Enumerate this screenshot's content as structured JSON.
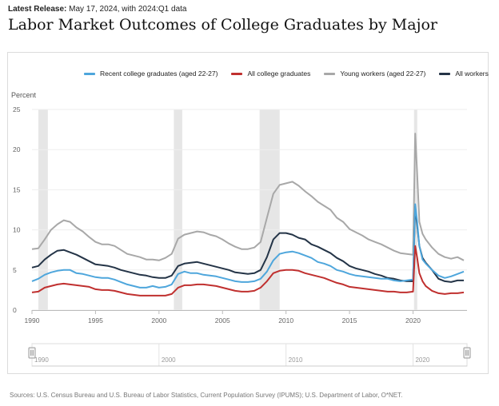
{
  "header": {
    "release_label": "Latest Release:",
    "release_text": "May 17, 2024, with 2024:Q1 data",
    "title": "Labor Market Outcomes of College Graduates by Major"
  },
  "footer": {
    "sources": "Sources: U.S. Census Bureau and U.S. Bureau of Labor Statistics, Current Population Survey (IPUMS); U.S. Department of Labor, O*NET."
  },
  "navigator": {
    "tick_labels": [
      "1990",
      "2000",
      "2010",
      "2020"
    ]
  },
  "chart_data": {
    "type": "line",
    "title": "",
    "ylabel": "Percent",
    "xlabel": "",
    "ylim": [
      0,
      25
    ],
    "xlim": [
      1990,
      2024.25
    ],
    "y_ticks": [
      0,
      5,
      10,
      15,
      20,
      25
    ],
    "x_ticks": [
      1990,
      1995,
      2000,
      2005,
      2010,
      2015,
      2020
    ],
    "grid": true,
    "legend_position": "top",
    "recessions": [
      [
        1990.5,
        1991.25
      ],
      [
        2001.17,
        2001.83
      ],
      [
        2007.92,
        2009.5
      ],
      [
        2020.08,
        2020.33
      ]
    ],
    "series": [
      {
        "name": "Recent college graduates (aged 22-27)",
        "color": "#4ea6dc",
        "x": [
          1990,
          1990.5,
          1991,
          1991.5,
          1992,
          1992.5,
          1993,
          1993.5,
          1994,
          1994.5,
          1995,
          1995.5,
          1996,
          1996.5,
          1997,
          1997.5,
          1998,
          1998.5,
          1999,
          1999.5,
          2000,
          2000.5,
          2001,
          2001.5,
          2002,
          2002.5,
          2003,
          2003.5,
          2004,
          2004.5,
          2005,
          2005.5,
          2006,
          2006.5,
          2007,
          2007.5,
          2008,
          2008.5,
          2009,
          2009.5,
          2010,
          2010.5,
          2011,
          2011.5,
          2012,
          2012.5,
          2013,
          2013.5,
          2014,
          2014.5,
          2015,
          2015.5,
          2016,
          2016.5,
          2017,
          2017.5,
          2018,
          2018.5,
          2019,
          2019.5,
          2020,
          2020.17,
          2020.33,
          2020.5,
          2020.75,
          2021,
          2021.5,
          2022,
          2022.5,
          2023,
          2023.5,
          2024
        ],
        "values": [
          3.6,
          3.9,
          4.4,
          4.7,
          4.9,
          5.0,
          5.0,
          4.6,
          4.5,
          4.3,
          4.1,
          4.0,
          4.0,
          3.8,
          3.5,
          3.2,
          3.0,
          2.8,
          2.8,
          3.0,
          2.8,
          2.9,
          3.2,
          4.5,
          4.8,
          4.6,
          4.6,
          4.4,
          4.3,
          4.2,
          4.0,
          3.8,
          3.6,
          3.5,
          3.5,
          3.6,
          3.9,
          4.8,
          6.2,
          7.0,
          7.2,
          7.3,
          7.1,
          6.8,
          6.5,
          6.0,
          5.8,
          5.5,
          5.0,
          4.8,
          4.5,
          4.3,
          4.2,
          4.1,
          4.0,
          3.9,
          3.9,
          3.7,
          3.6,
          3.7,
          3.8,
          13.2,
          11.0,
          8.0,
          6.3,
          5.8,
          5.0,
          4.3,
          4.0,
          4.2,
          4.5,
          4.8
        ]
      },
      {
        "name": "All college graduates",
        "color": "#c0302f",
        "x": [
          1990,
          1990.5,
          1991,
          1991.5,
          1992,
          1992.5,
          1993,
          1993.5,
          1994,
          1994.5,
          1995,
          1995.5,
          1996,
          1996.5,
          1997,
          1997.5,
          1998,
          1998.5,
          1999,
          1999.5,
          2000,
          2000.5,
          2001,
          2001.5,
          2002,
          2002.5,
          2003,
          2003.5,
          2004,
          2004.5,
          2005,
          2005.5,
          2006,
          2006.5,
          2007,
          2007.5,
          2008,
          2008.5,
          2009,
          2009.5,
          2010,
          2010.5,
          2011,
          2011.5,
          2012,
          2012.5,
          2013,
          2013.5,
          2014,
          2014.5,
          2015,
          2015.5,
          2016,
          2016.5,
          2017,
          2017.5,
          2018,
          2018.5,
          2019,
          2019.5,
          2020,
          2020.17,
          2020.33,
          2020.5,
          2020.75,
          2021,
          2021.5,
          2022,
          2022.5,
          2023,
          2023.5,
          2024
        ],
        "values": [
          2.2,
          2.3,
          2.8,
          3.0,
          3.2,
          3.3,
          3.2,
          3.1,
          3.0,
          2.9,
          2.6,
          2.5,
          2.5,
          2.4,
          2.2,
          2.0,
          1.9,
          1.8,
          1.8,
          1.8,
          1.8,
          1.8,
          2.0,
          2.8,
          3.1,
          3.1,
          3.2,
          3.2,
          3.1,
          3.0,
          2.8,
          2.6,
          2.4,
          2.3,
          2.3,
          2.4,
          2.8,
          3.6,
          4.6,
          4.9,
          5.0,
          5.0,
          4.9,
          4.6,
          4.4,
          4.2,
          4.0,
          3.7,
          3.4,
          3.2,
          2.9,
          2.8,
          2.7,
          2.6,
          2.5,
          2.4,
          2.3,
          2.3,
          2.2,
          2.2,
          2.3,
          8.0,
          6.5,
          4.6,
          3.6,
          3.0,
          2.4,
          2.1,
          2.0,
          2.1,
          2.1,
          2.2
        ]
      },
      {
        "name": "Young workers (aged 22-27)",
        "color": "#a8a8a8",
        "x": [
          1990,
          1990.5,
          1991,
          1991.5,
          1992,
          1992.5,
          1993,
          1993.5,
          1994,
          1994.5,
          1995,
          1995.5,
          1996,
          1996.5,
          1997,
          1997.5,
          1998,
          1998.5,
          1999,
          1999.5,
          2000,
          2000.5,
          2001,
          2001.5,
          2002,
          2002.5,
          2003,
          2003.5,
          2004,
          2004.5,
          2005,
          2005.5,
          2006,
          2006.5,
          2007,
          2007.5,
          2008,
          2008.5,
          2009,
          2009.5,
          2010,
          2010.5,
          2011,
          2011.5,
          2012,
          2012.5,
          2013,
          2013.5,
          2014,
          2014.5,
          2015,
          2015.5,
          2016,
          2016.5,
          2017,
          2017.5,
          2018,
          2018.5,
          2019,
          2019.5,
          2020,
          2020.17,
          2020.33,
          2020.5,
          2020.75,
          2021,
          2021.5,
          2022,
          2022.5,
          2023,
          2023.5,
          2024
        ],
        "values": [
          7.6,
          7.7,
          8.8,
          10.0,
          10.7,
          11.2,
          11.0,
          10.3,
          9.8,
          9.1,
          8.5,
          8.2,
          8.2,
          8.0,
          7.5,
          7.0,
          6.8,
          6.6,
          6.3,
          6.3,
          6.2,
          6.5,
          7.0,
          8.9,
          9.4,
          9.6,
          9.8,
          9.7,
          9.4,
          9.2,
          8.8,
          8.3,
          7.9,
          7.6,
          7.6,
          7.8,
          8.5,
          11.5,
          14.5,
          15.6,
          15.8,
          16.0,
          15.5,
          14.8,
          14.2,
          13.5,
          13.0,
          12.5,
          11.5,
          11.0,
          10.1,
          9.7,
          9.3,
          8.8,
          8.5,
          8.2,
          7.8,
          7.4,
          7.1,
          7.0,
          6.9,
          22.0,
          17.0,
          11.0,
          9.5,
          8.8,
          7.8,
          7.0,
          6.6,
          6.4,
          6.6,
          6.2
        ]
      },
      {
        "name": "All workers",
        "color": "#243447",
        "x": [
          1990,
          1990.5,
          1991,
          1991.5,
          1992,
          1992.5,
          1993,
          1993.5,
          1994,
          1994.5,
          1995,
          1995.5,
          1996,
          1996.5,
          1997,
          1997.5,
          1998,
          1998.5,
          1999,
          1999.5,
          2000,
          2000.5,
          2001,
          2001.5,
          2002,
          2002.5,
          2003,
          2003.5,
          2004,
          2004.5,
          2005,
          2005.5,
          2006,
          2006.5,
          2007,
          2007.5,
          2008,
          2008.5,
          2009,
          2009.5,
          2010,
          2010.5,
          2011,
          2011.5,
          2012,
          2012.5,
          2013,
          2013.5,
          2014,
          2014.5,
          2015,
          2015.5,
          2016,
          2016.5,
          2017,
          2017.5,
          2018,
          2018.5,
          2019,
          2019.5,
          2020,
          2020.17,
          2020.33,
          2020.5,
          2020.75,
          2021,
          2021.5,
          2022,
          2022.5,
          2023,
          2023.5,
          2024
        ],
        "values": [
          5.3,
          5.5,
          6.3,
          6.9,
          7.4,
          7.5,
          7.2,
          6.9,
          6.5,
          6.1,
          5.7,
          5.6,
          5.5,
          5.3,
          5.0,
          4.8,
          4.6,
          4.4,
          4.3,
          4.1,
          4.0,
          4.0,
          4.3,
          5.5,
          5.8,
          5.9,
          6.0,
          5.8,
          5.6,
          5.4,
          5.2,
          5.0,
          4.7,
          4.6,
          4.5,
          4.6,
          5.0,
          6.6,
          8.8,
          9.6,
          9.6,
          9.4,
          9.0,
          8.8,
          8.2,
          7.9,
          7.5,
          7.1,
          6.5,
          6.1,
          5.5,
          5.2,
          5.0,
          4.8,
          4.5,
          4.3,
          4.0,
          3.9,
          3.7,
          3.6,
          3.6,
          12.9,
          10.5,
          8.0,
          6.5,
          5.9,
          5.0,
          3.9,
          3.6,
          3.5,
          3.7,
          3.7
        ]
      }
    ]
  }
}
